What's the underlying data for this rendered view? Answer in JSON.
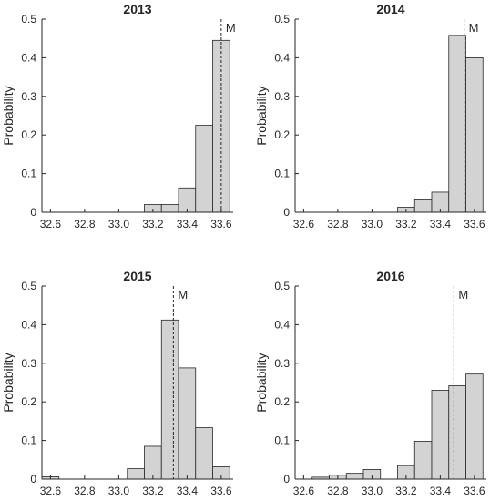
{
  "chart_data": [
    {
      "type": "bar",
      "title": "2013",
      "ylabel": "Probability",
      "xlabel": "",
      "ylim": [
        0,
        0.5
      ],
      "xlim": [
        32.55,
        33.67
      ],
      "xticks": [
        "32.6",
        "32.8",
        "33.0",
        "33.2",
        "33.4",
        "33.6"
      ],
      "yticks": [
        "0",
        "0.1",
        "0.2",
        "0.3",
        "0.4",
        "0.5"
      ],
      "bin_edges": [
        33.15,
        33.25,
        33.35,
        33.45,
        33.55,
        33.65
      ],
      "values": [
        0.02,
        0.02,
        0.063,
        0.225,
        0.445
      ],
      "mean_line": {
        "x": 33.6,
        "label": "M"
      }
    },
    {
      "type": "bar",
      "title": "2014",
      "ylabel": "Probability",
      "xlabel": "",
      "ylim": [
        0,
        0.5
      ],
      "xlim": [
        32.55,
        33.67
      ],
      "xticks": [
        "32.6",
        "32.8",
        "33.0",
        "33.2",
        "33.4",
        "33.6"
      ],
      "yticks": [
        "0",
        "0.1",
        "0.2",
        "0.3",
        "0.4",
        "0.5"
      ],
      "bin_edges": [
        33.15,
        33.25,
        33.35,
        33.45,
        33.55,
        33.65
      ],
      "values": [
        0.013,
        0.032,
        0.052,
        0.458,
        0.4
      ],
      "mean_line": {
        "x": 33.54,
        "label": "M"
      }
    },
    {
      "type": "bar",
      "title": "2015",
      "ylabel": "Probability",
      "xlabel": "",
      "ylim": [
        0,
        0.5
      ],
      "xlim": [
        32.55,
        33.67
      ],
      "xticks": [
        "32.6",
        "32.8",
        "33.0",
        "33.2",
        "33.4",
        "33.6"
      ],
      "yticks": [
        "0",
        "0.1",
        "0.2",
        "0.3",
        "0.4",
        "0.5"
      ],
      "bin_edges": [
        32.55,
        32.65,
        32.75,
        32.85,
        32.95,
        33.05,
        33.15,
        33.25,
        33.35,
        33.45,
        33.55,
        33.65
      ],
      "values": [
        0.006,
        0,
        0,
        0,
        0,
        0.027,
        0.085,
        0.412,
        0.288,
        0.133,
        0.032
      ],
      "mean_line": {
        "x": 33.32,
        "label": "M"
      }
    },
    {
      "type": "bar",
      "title": "2016",
      "ylabel": "Probability",
      "xlabel": "",
      "ylim": [
        0,
        0.5
      ],
      "xlim": [
        32.55,
        33.67
      ],
      "xticks": [
        "32.6",
        "32.8",
        "33.0",
        "33.2",
        "33.4",
        "33.6"
      ],
      "yticks": [
        "0",
        "0.1",
        "0.2",
        "0.3",
        "0.4",
        "0.5"
      ],
      "bin_edges": [
        32.65,
        32.75,
        32.85,
        32.95,
        33.05,
        33.15,
        33.25,
        33.35,
        33.45,
        33.55,
        33.65
      ],
      "values": [
        0.005,
        0.01,
        0.015,
        0.025,
        0,
        0.035,
        0.098,
        0.23,
        0.242,
        0.272
      ],
      "mean_line": {
        "x": 33.48,
        "label": "M"
      }
    }
  ]
}
